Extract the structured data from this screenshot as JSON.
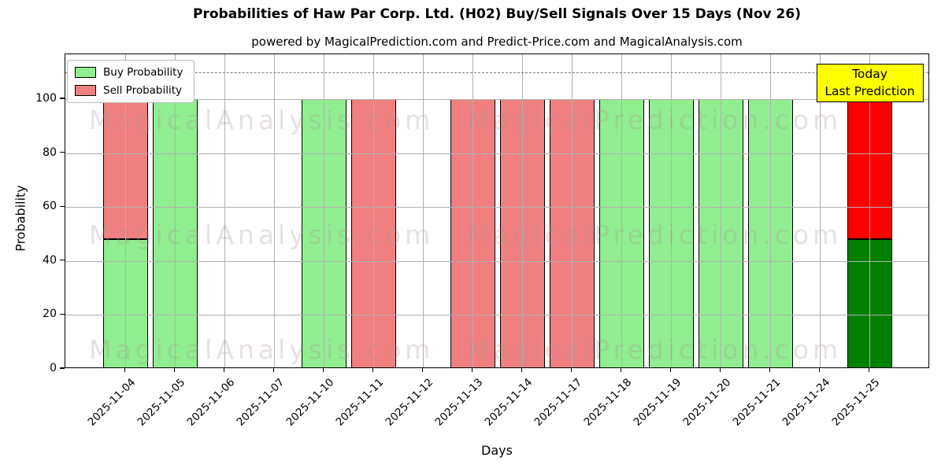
{
  "header": {
    "title": "Probabilities of Haw Par Corp. Ltd. (H02) Buy/Sell Signals Over 15 Days (Nov 26)",
    "subtitle": "powered by MagicalPrediction.com and Predict-Price.com and MagicalAnalysis.com"
  },
  "watermarks": {
    "left_text": "MagicalAnalysis.com",
    "right_text": "MagicalPrediction.com"
  },
  "annotation": {
    "line1": "Today",
    "line2": "Last Prediction",
    "bg_color": "#ffff00"
  },
  "chart_data": {
    "type": "bar",
    "stacked": true,
    "title": "Probabilities of Haw Par Corp. Ltd. (H02) Buy/Sell Signals Over 15 Days (Nov 26)",
    "xlabel": "Days",
    "ylabel": "Probability",
    "ylim": [
      0,
      116.6
    ],
    "yticks": [
      0,
      20,
      40,
      60,
      80,
      100
    ],
    "dashed_line_y": 110,
    "grid": true,
    "legend_position": "upper left",
    "categories": [
      "2025-11-04",
      "2025-11-05",
      "2025-11-06",
      "2025-11-07",
      "2025-11-10",
      "2025-11-11",
      "2025-11-12",
      "2025-11-13",
      "2025-11-14",
      "2025-11-17",
      "2025-11-18",
      "2025-11-19",
      "2025-11-20",
      "2025-11-21",
      "2025-11-24",
      "2025-11-25"
    ],
    "series": [
      {
        "name": "Buy Probability",
        "color": "#90EE90",
        "today_color": "#008000",
        "values": [
          48,
          100,
          0,
          0,
          100,
          0,
          0,
          0,
          0,
          0,
          100,
          100,
          100,
          100,
          0,
          48
        ]
      },
      {
        "name": "Sell Probability",
        "color": "#F08080",
        "today_color": "#FF0000",
        "values": [
          52,
          0,
          0,
          0,
          0,
          100,
          0,
          100,
          100,
          100,
          0,
          0,
          0,
          0,
          0,
          52
        ]
      }
    ],
    "today_index": 15,
    "grid_color": "#b0b0b0",
    "edge_color": "#000000"
  }
}
